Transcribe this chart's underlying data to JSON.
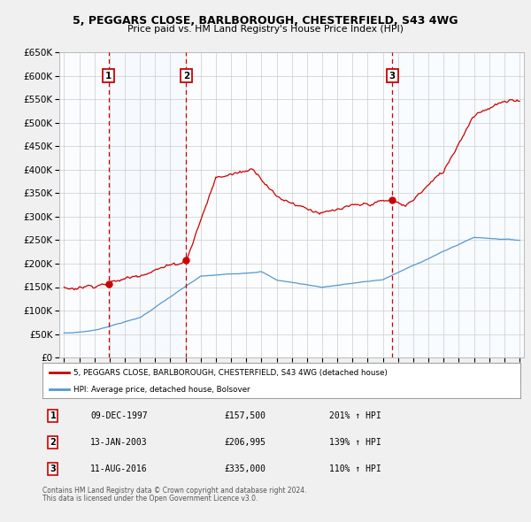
{
  "title": "5, PEGGARS CLOSE, BARLBOROUGH, CHESTERFIELD, S43 4WG",
  "subtitle": "Price paid vs. HM Land Registry's House Price Index (HPI)",
  "legend_property": "5, PEGGARS CLOSE, BARLBOROUGH, CHESTERFIELD, S43 4WG (detached house)",
  "legend_hpi": "HPI: Average price, detached house, Bolsover",
  "sales": [
    {
      "num": 1,
      "date": "09-DEC-1997",
      "price": 157500,
      "hpi_pct": "201% ↑ HPI",
      "x_year": 1997.94
    },
    {
      "num": 2,
      "date": "13-JAN-2003",
      "price": 206995,
      "hpi_pct": "139% ↑ HPI",
      "x_year": 2003.04
    },
    {
      "num": 3,
      "date": "11-AUG-2016",
      "price": 335000,
      "hpi_pct": "110% ↑ HPI",
      "x_year": 2016.62
    }
  ],
  "sale_prices": [
    157500,
    206995,
    335000
  ],
  "footer_line1": "Contains HM Land Registry data © Crown copyright and database right 2024.",
  "footer_line2": "This data is licensed under the Open Government Licence v3.0.",
  "red_color": "#cc0000",
  "blue_color": "#5599cc",
  "shade_color": "#ddeeff",
  "grid_color": "#cccccc",
  "plot_bg": "#ffffff",
  "fig_bg": "#f0f0f0",
  "ylim": [
    0,
    650000
  ],
  "xlim": [
    1994.7,
    2025.3
  ],
  "yticks": [
    0,
    50000,
    100000,
    150000,
    200000,
    250000,
    300000,
    350000,
    400000,
    450000,
    500000,
    550000,
    600000,
    650000
  ],
  "xticks": [
    1995,
    1996,
    1997,
    1998,
    1999,
    2000,
    2001,
    2002,
    2003,
    2004,
    2005,
    2006,
    2007,
    2008,
    2009,
    2010,
    2011,
    2012,
    2013,
    2014,
    2015,
    2016,
    2017,
    2018,
    2019,
    2020,
    2021,
    2022,
    2023,
    2024,
    2025
  ]
}
